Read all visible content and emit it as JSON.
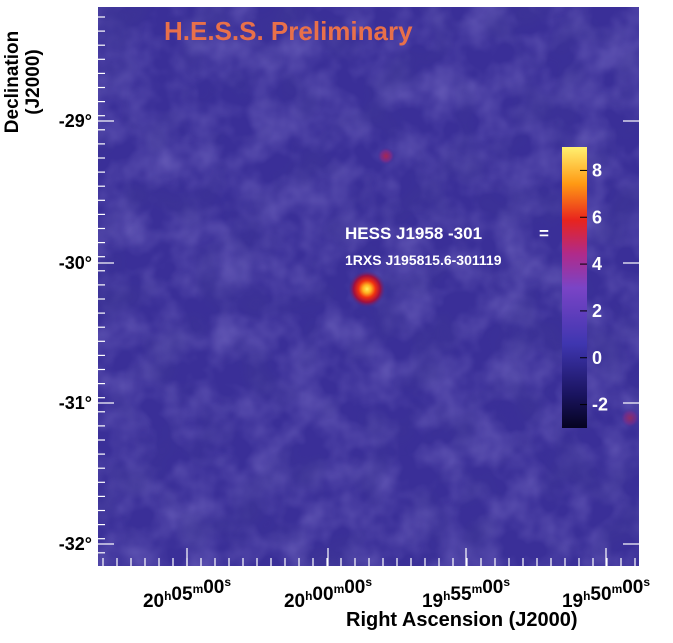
{
  "watermark": "H.E.S.S. Preliminary",
  "axes": {
    "y_title_line1": "Declination",
    "y_title_line2": "(J2000)",
    "x_title": "Right Ascension (J2000)",
    "y_ticks": [
      "-29°",
      "-30°",
      "-31°",
      "-32°"
    ],
    "x_ticks": [
      {
        "h": "20",
        "m": "05",
        "s": "00"
      },
      {
        "h": "20",
        "m": "00",
        "s": "00"
      },
      {
        "h": "19",
        "m": "55",
        "s": "00"
      },
      {
        "h": "19",
        "m": "50",
        "s": "00"
      }
    ]
  },
  "colorbar": {
    "ticks": [
      "8",
      "6",
      "4",
      "2",
      "0",
      "-2"
    ],
    "range": [
      -3,
      9
    ]
  },
  "source": {
    "name_line1": "HESS J1958 -301",
    "equals": "=",
    "name_line2": "1RXS J195815.6-301119"
  },
  "colors": {
    "background_map": "#3a2f98",
    "watermark": "#e8704a",
    "label_text": "#ffffff"
  }
}
